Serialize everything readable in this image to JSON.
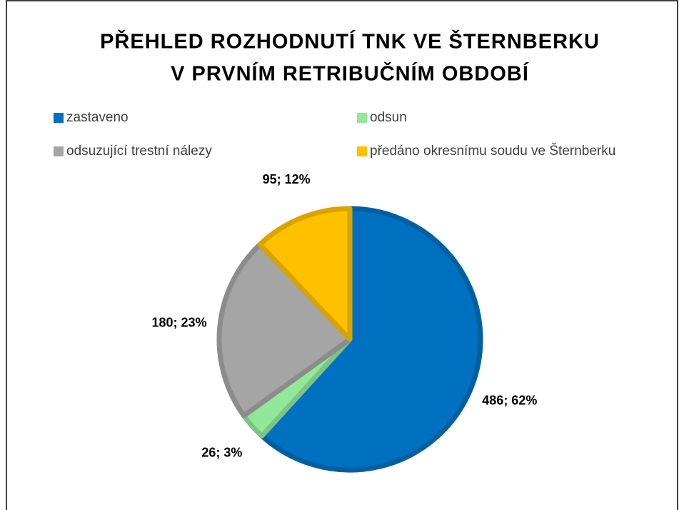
{
  "chart_data": {
    "type": "pie",
    "title": [
      "PŘEHLED ROZHODNUTÍ TNK VE ŠTERNBERKU",
      "V PRVNÍM RETRIBUČNÍM OBDOBÍ"
    ],
    "categories": [
      "zastaveno",
      "odsun",
      "odsuzující trestní nálezy",
      "předáno okresnímu soudu ve Šternberku"
    ],
    "values": [
      486,
      26,
      180,
      95
    ],
    "value_labels": [
      "486; 62%",
      "26; 3%",
      "180; 23%",
      "95; 12%"
    ],
    "colors": [
      "#0070c0",
      "#92e89a",
      "#a5a5a5",
      "#ffc000"
    ],
    "legend": "top"
  }
}
